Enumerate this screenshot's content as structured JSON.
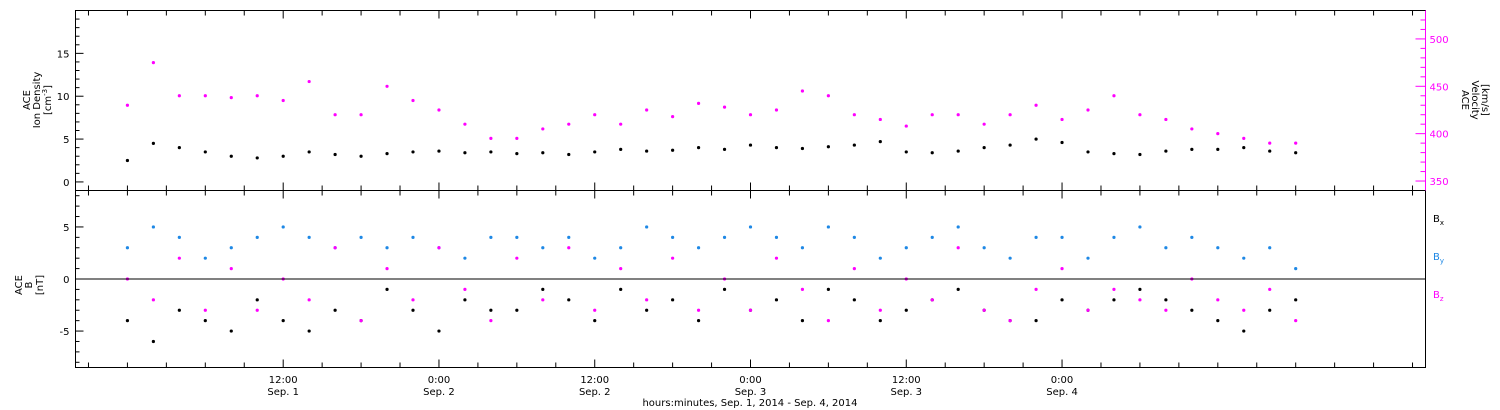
{
  "chart_data": [
    {
      "type": "scatter",
      "panel": "plasma",
      "ylabel": [
        "ACE",
        "Ion Density",
        "[cm",
        "-3",
        "]"
      ],
      "ylabel_right": [
        "ACE",
        "Velocity",
        "[km/s]"
      ],
      "ylim": [
        -1,
        20
      ],
      "ylim_right": [
        340,
        530
      ],
      "yticks": [
        0,
        5,
        10,
        15
      ],
      "yticks_right": [
        350,
        400,
        450,
        500
      ],
      "colors": {
        "density": "#000000",
        "velocity": "#ff00ff",
        "right_axis": "#ff00ff"
      },
      "series": [
        {
          "axis": "left",
          "color": "#000000",
          "x": [
            0,
            2,
            4,
            6,
            8,
            10,
            12,
            14,
            16,
            18,
            20,
            22,
            24,
            26,
            28,
            30,
            32,
            34,
            36,
            38,
            40,
            42,
            44,
            46,
            48,
            50,
            52,
            54,
            56,
            58,
            60,
            62,
            64,
            66,
            68,
            70,
            72,
            74,
            76,
            78,
            80,
            82,
            84,
            86,
            88,
            90
          ],
          "values": [
            2.5,
            4.5,
            4.0,
            3.5,
            3.0,
            2.8,
            3.0,
            3.5,
            3.2,
            3.0,
            3.3,
            3.5,
            3.6,
            3.4,
            3.5,
            3.3,
            3.4,
            3.2,
            3.5,
            3.8,
            3.6,
            3.7,
            4.0,
            3.8,
            4.3,
            4.0,
            3.9,
            4.1,
            4.3,
            4.7,
            3.5,
            3.4,
            3.6,
            4.0,
            4.3,
            5.0,
            4.6,
            3.5,
            3.3,
            3.2,
            3.6,
            3.8,
            3.8,
            4.0,
            3.6,
            3.4
          ]
        },
        {
          "axis": "right",
          "color": "#ff00ff",
          "x": [
            0,
            2,
            4,
            6,
            8,
            10,
            12,
            14,
            16,
            18,
            20,
            22,
            24,
            26,
            28,
            30,
            32,
            34,
            36,
            38,
            40,
            42,
            44,
            46,
            48,
            50,
            52,
            54,
            56,
            58,
            60,
            62,
            64,
            66,
            68,
            70,
            72,
            74,
            76,
            78,
            80,
            82,
            84,
            86,
            88,
            90
          ],
          "values": [
            430,
            475,
            440,
            440,
            438,
            440,
            435,
            455,
            420,
            420,
            450,
            435,
            425,
            410,
            395,
            395,
            405,
            410,
            420,
            410,
            425,
            418,
            432,
            428,
            420,
            425,
            445,
            440,
            420,
            415,
            408,
            420,
            420,
            410,
            420,
            430,
            415,
            425,
            440,
            420,
            415,
            405,
            400,
            395,
            390,
            390
          ]
        }
      ]
    },
    {
      "type": "scatter",
      "panel": "magnetic",
      "ylabel": [
        "ACE",
        "B",
        "[nT]"
      ],
      "ylim": [
        -8.5,
        8.5
      ],
      "yticks": [
        -5,
        0,
        5
      ],
      "series": [
        {
          "name": "Bx",
          "color": "#000000",
          "x": [
            0,
            2,
            4,
            6,
            8,
            10,
            12,
            14,
            16,
            18,
            20,
            22,
            24,
            26,
            28,
            30,
            32,
            34,
            36,
            38,
            40,
            42,
            44,
            46,
            48,
            50,
            52,
            54,
            56,
            58,
            60,
            62,
            64,
            66,
            68,
            70,
            72,
            74,
            76,
            78,
            80,
            82,
            84,
            86,
            88,
            90
          ],
          "values": [
            -4,
            -6,
            -3,
            -4,
            -5,
            -2,
            -4,
            -5,
            -3,
            -4,
            -1,
            -3,
            -5,
            -2,
            -3,
            -3,
            -1,
            -2,
            -4,
            -1,
            -3,
            -2,
            -4,
            -1,
            -3,
            -2,
            -4,
            -1,
            -2,
            -4,
            -3,
            -2,
            -1,
            -3,
            -4,
            -4,
            -2,
            -3,
            -2,
            -1,
            -2,
            -3,
            -4,
            -5,
            -3,
            -2
          ]
        },
        {
          "name": "By",
          "color": "#1e88e5",
          "x": [
            0,
            2,
            4,
            6,
            8,
            10,
            12,
            14,
            16,
            18,
            20,
            22,
            24,
            26,
            28,
            30,
            32,
            34,
            36,
            38,
            40,
            42,
            44,
            46,
            48,
            50,
            52,
            54,
            56,
            58,
            60,
            62,
            64,
            66,
            68,
            70,
            72,
            74,
            76,
            78,
            80,
            82,
            84,
            86,
            88,
            90
          ],
          "values": [
            3,
            5,
            4,
            2,
            3,
            4,
            5,
            4,
            3,
            4,
            3,
            4,
            3,
            2,
            4,
            4,
            3,
            4,
            2,
            3,
            5,
            4,
            3,
            4,
            5,
            4,
            3,
            5,
            4,
            2,
            3,
            4,
            5,
            3,
            2,
            4,
            4,
            2,
            4,
            5,
            3,
            4,
            3,
            2,
            3,
            1
          ]
        },
        {
          "name": "Bz",
          "color": "#ff00ff",
          "x": [
            0,
            2,
            4,
            6,
            8,
            10,
            12,
            14,
            16,
            18,
            20,
            22,
            24,
            26,
            28,
            30,
            32,
            34,
            36,
            38,
            40,
            42,
            44,
            46,
            48,
            50,
            52,
            54,
            56,
            58,
            60,
            62,
            64,
            66,
            68,
            70,
            72,
            74,
            76,
            78,
            80,
            82,
            84,
            86,
            88,
            90
          ],
          "values": [
            0,
            -2,
            2,
            -3,
            1,
            -3,
            0,
            -2,
            3,
            -4,
            1,
            -2,
            3,
            -1,
            -4,
            2,
            -2,
            3,
            -3,
            1,
            -2,
            2,
            -3,
            0,
            -3,
            2,
            -1,
            -4,
            1,
            -3,
            0,
            -2,
            3,
            -3,
            -4,
            -1,
            1,
            -3,
            -1,
            -2,
            -3,
            0,
            -2,
            -3,
            -1,
            -4
          ]
        }
      ],
      "legend": [
        {
          "label": "B",
          "sub": "x",
          "color": "#000000"
        },
        {
          "label": "B",
          "sub": "y",
          "color": "#1e88e5"
        },
        {
          "label": "B",
          "sub": "z",
          "color": "#ff00ff"
        }
      ]
    }
  ],
  "x_axis": {
    "xlim": [
      -4,
      100
    ],
    "major_ticks": [
      {
        "x": 12,
        "time": "12:00",
        "date": "Sep. 1"
      },
      {
        "x": 24,
        "time": "0:00",
        "date": "Sep. 2"
      },
      {
        "x": 36,
        "time": "12:00",
        "date": "Sep. 2"
      },
      {
        "x": 48,
        "time": "0:00",
        "date": "Sep. 3"
      },
      {
        "x": 60,
        "time": "12:00",
        "date": "Sep. 3"
      },
      {
        "x": 72,
        "time": "0:00",
        "date": "Sep. 4"
      }
    ],
    "xlabel": "hours:minutes, Sep.  1, 2014 - Sep.  4, 2014"
  }
}
